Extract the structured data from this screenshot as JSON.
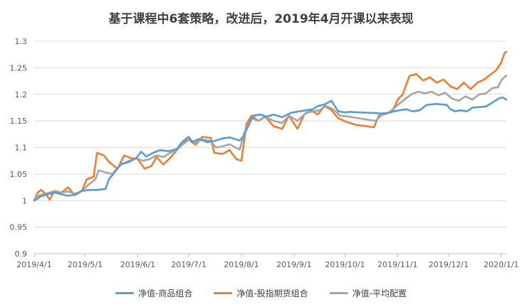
{
  "chart_data": {
    "type": "line",
    "title": "基于课程中6套策略，改进后，2019年4月开课以来表现",
    "xlabel": "",
    "ylabel": "",
    "ylim": [
      0.9,
      1.3
    ],
    "yticks": [
      "0.9",
      "0.95",
      "1",
      "1.05",
      "1.1",
      "1.15",
      "1.2",
      "1.25",
      "1.3"
    ],
    "x_tick_labels": [
      "2019/4/1",
      "2019/5/1",
      "2019/6/1",
      "2019/7/1",
      "2019/8/1",
      "2019/9/1",
      "2019/10/1",
      "2019/11/1",
      "2019/12/1",
      "2020/1/1"
    ],
    "x_tick_dates": [
      "2019-04-01",
      "2019-05-01",
      "2019-06-01",
      "2019-07-01",
      "2019-08-01",
      "2019-09-01",
      "2019-10-01",
      "2019-11-01",
      "2019-12-01",
      "2020-01-01"
    ],
    "x_range": [
      "2019-04-01",
      "2020-01-04"
    ],
    "grid": "horizontal",
    "legend": "bottom",
    "series": [
      {
        "name": "净值-商品组合",
        "color": "#5B9BD5",
        "points": [
          [
            "2019-04-01",
            1.0
          ],
          [
            "2019-04-05",
            1.008
          ],
          [
            "2019-04-09",
            1.012
          ],
          [
            "2019-04-13",
            1.015
          ],
          [
            "2019-04-17",
            1.012
          ],
          [
            "2019-04-21",
            1.009
          ],
          [
            "2019-04-25",
            1.011
          ],
          [
            "2019-04-29",
            1.018
          ],
          [
            "2019-05-03",
            1.02
          ],
          [
            "2019-05-08",
            1.02
          ],
          [
            "2019-05-13",
            1.022
          ],
          [
            "2019-05-15",
            1.04
          ],
          [
            "2019-05-18",
            1.052
          ],
          [
            "2019-05-22",
            1.068
          ],
          [
            "2019-05-27",
            1.073
          ],
          [
            "2019-05-31",
            1.08
          ],
          [
            "2019-06-03",
            1.092
          ],
          [
            "2019-06-06",
            1.083
          ],
          [
            "2019-06-10",
            1.09
          ],
          [
            "2019-06-14",
            1.095
          ],
          [
            "2019-06-19",
            1.093
          ],
          [
            "2019-06-24",
            1.097
          ],
          [
            "2019-06-27",
            1.11
          ],
          [
            "2019-07-01",
            1.12
          ],
          [
            "2019-07-03",
            1.11
          ],
          [
            "2019-07-07",
            1.116
          ],
          [
            "2019-07-12",
            1.11
          ],
          [
            "2019-07-16",
            1.112
          ],
          [
            "2019-07-21",
            1.117
          ],
          [
            "2019-07-25",
            1.119
          ],
          [
            "2019-07-31",
            1.113
          ],
          [
            "2019-08-02",
            1.12
          ],
          [
            "2019-08-05",
            1.14
          ],
          [
            "2019-08-08",
            1.16
          ],
          [
            "2019-08-12",
            1.162
          ],
          [
            "2019-08-16",
            1.158
          ],
          [
            "2019-08-20",
            1.162
          ],
          [
            "2019-08-25",
            1.157
          ],
          [
            "2019-08-30",
            1.165
          ],
          [
            "2019-09-04",
            1.168
          ],
          [
            "2019-09-08",
            1.17
          ],
          [
            "2019-09-12",
            1.172
          ],
          [
            "2019-09-15",
            1.178
          ],
          [
            "2019-09-19",
            1.181
          ],
          [
            "2019-09-23",
            1.188
          ],
          [
            "2019-09-27",
            1.168
          ],
          [
            "2019-10-01",
            1.166
          ],
          [
            "2019-10-04",
            1.167
          ],
          [
            "2019-10-10",
            1.166
          ],
          [
            "2019-10-18",
            1.165
          ],
          [
            "2019-10-22",
            1.164
          ],
          [
            "2019-10-26",
            1.165
          ],
          [
            "2019-10-30",
            1.168
          ],
          [
            "2019-11-02",
            1.17
          ],
          [
            "2019-11-06",
            1.172
          ],
          [
            "2019-11-10",
            1.168
          ],
          [
            "2019-11-14",
            1.17
          ],
          [
            "2019-11-18",
            1.18
          ],
          [
            "2019-11-24",
            1.182
          ],
          [
            "2019-11-30",
            1.18
          ],
          [
            "2019-12-02",
            1.172
          ],
          [
            "2019-12-05",
            1.168
          ],
          [
            "2019-12-08",
            1.17
          ],
          [
            "2019-12-12",
            1.168
          ],
          [
            "2019-12-15",
            1.175
          ],
          [
            "2019-12-19",
            1.176
          ],
          [
            "2019-12-23",
            1.177
          ],
          [
            "2019-12-27",
            1.185
          ],
          [
            "2019-12-31",
            1.193
          ],
          [
            "2020-01-02",
            1.194
          ],
          [
            "2020-01-04",
            1.19
          ]
        ]
      },
      {
        "name": "净值-股指期货组合",
        "color": "#ED7D31",
        "points": [
          [
            "2019-04-01",
            1.0
          ],
          [
            "2019-04-03",
            1.015
          ],
          [
            "2019-04-05",
            1.02
          ],
          [
            "2019-04-08",
            1.012
          ],
          [
            "2019-04-10",
            1.002
          ],
          [
            "2019-04-13",
            1.018
          ],
          [
            "2019-04-17",
            1.015
          ],
          [
            "2019-04-21",
            1.025
          ],
          [
            "2019-04-25",
            1.01
          ],
          [
            "2019-04-29",
            1.018
          ],
          [
            "2019-05-02",
            1.04
          ],
          [
            "2019-05-06",
            1.045
          ],
          [
            "2019-05-08",
            1.09
          ],
          [
            "2019-05-12",
            1.085
          ],
          [
            "2019-05-15",
            1.073
          ],
          [
            "2019-05-20",
            1.06
          ],
          [
            "2019-05-24",
            1.085
          ],
          [
            "2019-05-28",
            1.08
          ],
          [
            "2019-06-01",
            1.078
          ],
          [
            "2019-06-05",
            1.06
          ],
          [
            "2019-06-09",
            1.065
          ],
          [
            "2019-06-12",
            1.082
          ],
          [
            "2019-06-16",
            1.068
          ],
          [
            "2019-06-20",
            1.08
          ],
          [
            "2019-06-24",
            1.095
          ],
          [
            "2019-06-27",
            1.105
          ],
          [
            "2019-07-01",
            1.115
          ],
          [
            "2019-07-05",
            1.105
          ],
          [
            "2019-07-09",
            1.12
          ],
          [
            "2019-07-14",
            1.118
          ],
          [
            "2019-07-16",
            1.09
          ],
          [
            "2019-07-21",
            1.088
          ],
          [
            "2019-07-25",
            1.095
          ],
          [
            "2019-07-29",
            1.078
          ],
          [
            "2019-08-01",
            1.075
          ],
          [
            "2019-08-04",
            1.145
          ],
          [
            "2019-08-07",
            1.16
          ],
          [
            "2019-08-11",
            1.15
          ],
          [
            "2019-08-15",
            1.158
          ],
          [
            "2019-08-20",
            1.14
          ],
          [
            "2019-08-25",
            1.135
          ],
          [
            "2019-08-29",
            1.16
          ],
          [
            "2019-09-03",
            1.135
          ],
          [
            "2019-09-07",
            1.162
          ],
          [
            "2019-09-11",
            1.17
          ],
          [
            "2019-09-15",
            1.162
          ],
          [
            "2019-09-19",
            1.178
          ],
          [
            "2019-09-23",
            1.17
          ],
          [
            "2019-09-27",
            1.155
          ],
          [
            "2019-10-02",
            1.148
          ],
          [
            "2019-10-08",
            1.142
          ],
          [
            "2019-10-14",
            1.14
          ],
          [
            "2019-10-18",
            1.138
          ],
          [
            "2019-10-21",
            1.16
          ],
          [
            "2019-10-25",
            1.163
          ],
          [
            "2019-10-29",
            1.168
          ],
          [
            "2019-11-01",
            1.19
          ],
          [
            "2019-11-04",
            1.2
          ],
          [
            "2019-11-08",
            1.235
          ],
          [
            "2019-11-12",
            1.238
          ],
          [
            "2019-11-16",
            1.226
          ],
          [
            "2019-11-20",
            1.232
          ],
          [
            "2019-11-24",
            1.222
          ],
          [
            "2019-11-28",
            1.228
          ],
          [
            "2019-12-02",
            1.215
          ],
          [
            "2019-12-06",
            1.21
          ],
          [
            "2019-12-10",
            1.222
          ],
          [
            "2019-12-14",
            1.21
          ],
          [
            "2019-12-18",
            1.222
          ],
          [
            "2019-12-22",
            1.228
          ],
          [
            "2019-12-26",
            1.238
          ],
          [
            "2019-12-29",
            1.245
          ],
          [
            "2020-01-01",
            1.26
          ],
          [
            "2020-01-03",
            1.278
          ],
          [
            "2020-01-04",
            1.28
          ]
        ]
      },
      {
        "name": "净值-平均配置",
        "color": "#A5A5A5",
        "points": [
          [
            "2019-04-01",
            1.0
          ],
          [
            "2019-04-04",
            1.01
          ],
          [
            "2019-04-08",
            1.013
          ],
          [
            "2019-04-12",
            1.017
          ],
          [
            "2019-04-16",
            1.015
          ],
          [
            "2019-04-21",
            1.017
          ],
          [
            "2019-04-25",
            1.013
          ],
          [
            "2019-04-29",
            1.018
          ],
          [
            "2019-05-03",
            1.03
          ],
          [
            "2019-05-07",
            1.04
          ],
          [
            "2019-05-09",
            1.057
          ],
          [
            "2019-05-13",
            1.053
          ],
          [
            "2019-05-17",
            1.05
          ],
          [
            "2019-05-22",
            1.068
          ],
          [
            "2019-05-27",
            1.075
          ],
          [
            "2019-05-31",
            1.08
          ],
          [
            "2019-06-04",
            1.075
          ],
          [
            "2019-06-08",
            1.078
          ],
          [
            "2019-06-12",
            1.085
          ],
          [
            "2019-06-16",
            1.082
          ],
          [
            "2019-06-20",
            1.09
          ],
          [
            "2019-06-24",
            1.095
          ],
          [
            "2019-06-28",
            1.11
          ],
          [
            "2019-07-01",
            1.115
          ],
          [
            "2019-07-05",
            1.11
          ],
          [
            "2019-07-09",
            1.115
          ],
          [
            "2019-07-14",
            1.112
          ],
          [
            "2019-07-17",
            1.1
          ],
          [
            "2019-07-21",
            1.102
          ],
          [
            "2019-07-25",
            1.106
          ],
          [
            "2019-07-31",
            1.096
          ],
          [
            "2019-08-03",
            1.13
          ],
          [
            "2019-08-07",
            1.155
          ],
          [
            "2019-08-11",
            1.15
          ],
          [
            "2019-08-15",
            1.157
          ],
          [
            "2019-08-20",
            1.15
          ],
          [
            "2019-08-25",
            1.146
          ],
          [
            "2019-08-29",
            1.16
          ],
          [
            "2019-09-03",
            1.15
          ],
          [
            "2019-09-08",
            1.165
          ],
          [
            "2019-09-12",
            1.168
          ],
          [
            "2019-09-16",
            1.17
          ],
          [
            "2019-09-20",
            1.178
          ],
          [
            "2019-09-24",
            1.172
          ],
          [
            "2019-09-28",
            1.16
          ],
          [
            "2019-10-03",
            1.158
          ],
          [
            "2019-10-09",
            1.155
          ],
          [
            "2019-10-15",
            1.152
          ],
          [
            "2019-10-19",
            1.15
          ],
          [
            "2019-10-23",
            1.162
          ],
          [
            "2019-10-27",
            1.166
          ],
          [
            "2019-11-01",
            1.18
          ],
          [
            "2019-11-05",
            1.19
          ],
          [
            "2019-11-09",
            1.2
          ],
          [
            "2019-11-13",
            1.205
          ],
          [
            "2019-11-17",
            1.202
          ],
          [
            "2019-11-21",
            1.205
          ],
          [
            "2019-11-25",
            1.198
          ],
          [
            "2019-11-29",
            1.203
          ],
          [
            "2019-12-03",
            1.192
          ],
          [
            "2019-12-07",
            1.188
          ],
          [
            "2019-12-11",
            1.196
          ],
          [
            "2019-12-15",
            1.19
          ],
          [
            "2019-12-19",
            1.2
          ],
          [
            "2019-12-23",
            1.202
          ],
          [
            "2019-12-27",
            1.212
          ],
          [
            "2019-12-30",
            1.213
          ],
          [
            "2020-01-01",
            1.226
          ],
          [
            "2020-01-03",
            1.233
          ],
          [
            "2020-01-04",
            1.235
          ]
        ]
      }
    ]
  }
}
